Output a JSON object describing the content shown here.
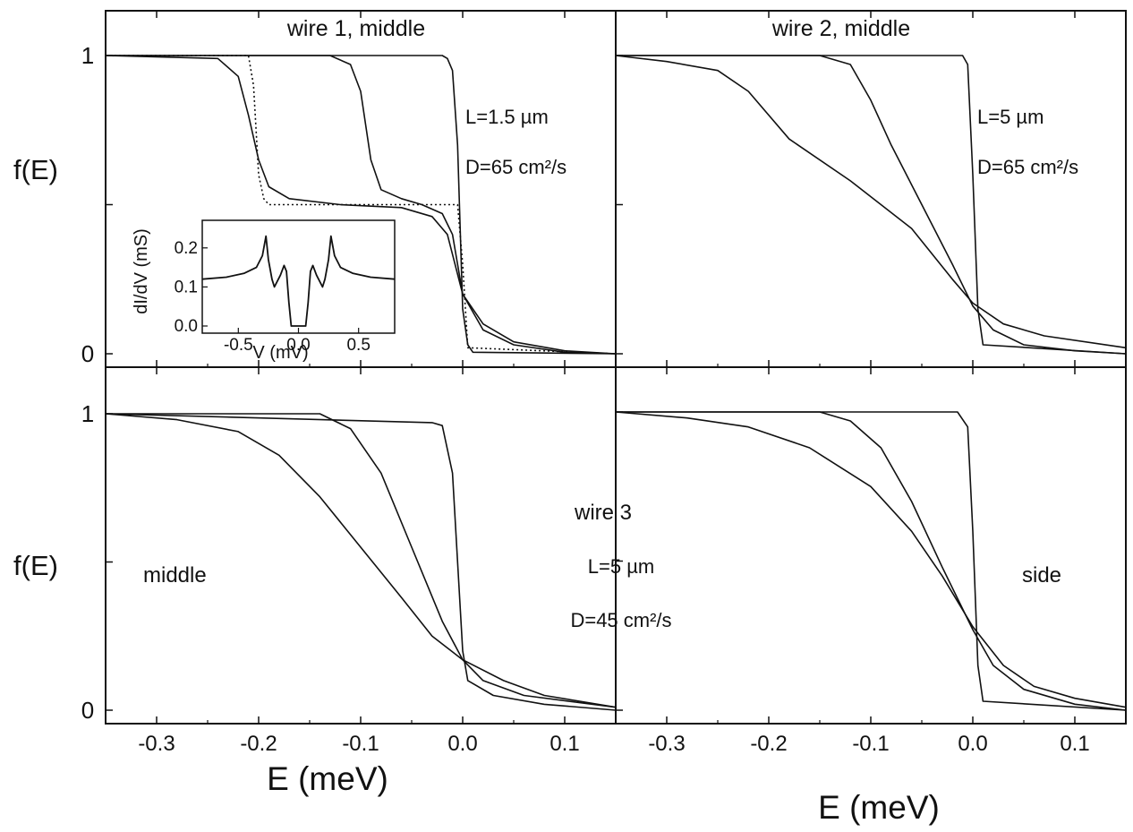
{
  "chart_data": [
    {
      "type": "line",
      "panel": "top-left",
      "annotations": [
        "wire 1, middle",
        "L=1.5 µm",
        "D=65 cm²/s"
      ],
      "ylabel": "f(E)",
      "xlim": [
        -0.35,
        0.15
      ],
      "ylim": [
        0,
        1
      ],
      "yticks": [
        "0",
        "1"
      ],
      "series": [
        {
          "style": "solid",
          "x": [
            -0.35,
            -0.02,
            -0.015,
            -0.01,
            -0.005,
            0,
            0.005,
            0.01,
            0.15
          ],
          "y": [
            1,
            1,
            0.99,
            0.95,
            0.7,
            0.15,
            0.03,
            0.005,
            0
          ]
        },
        {
          "style": "solid",
          "x": [
            -0.35,
            -0.13,
            -0.11,
            -0.1,
            -0.09,
            -0.08,
            -0.06,
            -0.04,
            -0.02,
            -0.01,
            0,
            0.02,
            0.05,
            0.1,
            0.15
          ],
          "y": [
            1,
            1,
            0.97,
            0.88,
            0.65,
            0.55,
            0.52,
            0.5,
            0.47,
            0.4,
            0.2,
            0.08,
            0.03,
            0.005,
            0
          ]
        },
        {
          "style": "solid",
          "x": [
            -0.35,
            -0.24,
            -0.22,
            -0.21,
            -0.2,
            -0.19,
            -0.17,
            -0.12,
            -0.06,
            -0.03,
            -0.015,
            0,
            0.02,
            0.05,
            0.1,
            0.15
          ],
          "y": [
            1,
            0.99,
            0.93,
            0.8,
            0.65,
            0.56,
            0.52,
            0.5,
            0.49,
            0.46,
            0.4,
            0.2,
            0.1,
            0.04,
            0.01,
            0
          ]
        },
        {
          "style": "dotted",
          "x": [
            -0.35,
            -0.21,
            -0.205,
            -0.2,
            -0.195,
            -0.19,
            -0.005,
            0,
            0.005,
            0.15
          ],
          "y": [
            1,
            1,
            0.9,
            0.6,
            0.52,
            0.5,
            0.5,
            0.3,
            0.02,
            0
          ]
        }
      ]
    },
    {
      "type": "line",
      "panel": "inset",
      "xlabel": "V (mV)",
      "ylabel": "dI/dV (mS)",
      "xlim": [
        -0.8,
        0.8
      ],
      "ylim": [
        0,
        0.25
      ],
      "xticks": [
        "-0.5",
        "0.0",
        "0.5"
      ],
      "yticks": [
        "0.0",
        "0.1",
        "0.2"
      ],
      "series": [
        {
          "style": "solid",
          "x": [
            -0.8,
            -0.6,
            -0.45,
            -0.35,
            -0.3,
            -0.27,
            -0.25,
            -0.22,
            -0.2,
            -0.15,
            -0.12,
            -0.1,
            -0.08,
            -0.06,
            0.06,
            0.08,
            0.1,
            0.12,
            0.15,
            0.2,
            0.22,
            0.25,
            0.27,
            0.3,
            0.35,
            0.45,
            0.6,
            0.8
          ],
          "y": [
            0.12,
            0.125,
            0.135,
            0.15,
            0.18,
            0.23,
            0.17,
            0.12,
            0.1,
            0.13,
            0.155,
            0.14,
            0.06,
            0,
            0,
            0.06,
            0.14,
            0.155,
            0.13,
            0.1,
            0.12,
            0.17,
            0.23,
            0.18,
            0.15,
            0.135,
            0.125,
            0.12
          ]
        }
      ]
    },
    {
      "type": "line",
      "panel": "top-right",
      "annotations": [
        "wire 2, middle",
        "L=5 µm",
        "D=65 cm²/s"
      ],
      "xlim": [
        -0.35,
        0.15
      ],
      "ylim": [
        0,
        1
      ],
      "series": [
        {
          "style": "solid",
          "x": [
            -0.35,
            -0.01,
            -0.005,
            0,
            0.005,
            0.01,
            0.15
          ],
          "y": [
            1,
            1,
            0.97,
            0.6,
            0.15,
            0.03,
            0
          ]
        },
        {
          "style": "solid",
          "x": [
            -0.35,
            -0.15,
            -0.12,
            -0.1,
            -0.08,
            -0.05,
            -0.02,
            0,
            0.02,
            0.05,
            0.1,
            0.15
          ],
          "y": [
            1,
            1,
            0.97,
            0.85,
            0.7,
            0.5,
            0.3,
            0.16,
            0.08,
            0.03,
            0.01,
            0
          ]
        },
        {
          "style": "solid",
          "x": [
            -0.35,
            -0.3,
            -0.25,
            -0.22,
            -0.18,
            -0.12,
            -0.06,
            -0.02,
            0,
            0.03,
            0.07,
            0.15
          ],
          "y": [
            1,
            0.98,
            0.95,
            0.88,
            0.72,
            0.58,
            0.42,
            0.25,
            0.17,
            0.1,
            0.06,
            0.02
          ]
        }
      ]
    },
    {
      "type": "line",
      "panel": "bottom-left",
      "annotations": [
        "middle"
      ],
      "ylabel": "f(E)",
      "xlabel": "E (meV)",
      "xlim": [
        -0.35,
        0.15
      ],
      "ylim": [
        0,
        1
      ],
      "xticks": [
        "-0.3",
        "-0.2",
        "-0.1",
        "0.0",
        "0.1"
      ],
      "yticks": [
        "0",
        "1"
      ],
      "series": [
        {
          "style": "solid",
          "x": [
            -0.35,
            -0.03,
            -0.02,
            -0.01,
            0,
            0.005,
            0.03,
            0.08,
            0.15
          ],
          "y": [
            1,
            0.97,
            0.96,
            0.8,
            0.2,
            0.1,
            0.05,
            0.02,
            0
          ]
        },
        {
          "style": "solid",
          "x": [
            -0.35,
            -0.14,
            -0.11,
            -0.08,
            -0.05,
            -0.02,
            0,
            0.02,
            0.06,
            0.15
          ],
          "y": [
            1,
            1,
            0.95,
            0.8,
            0.55,
            0.3,
            0.17,
            0.1,
            0.05,
            0.01
          ]
        },
        {
          "style": "solid",
          "x": [
            -0.35,
            -0.28,
            -0.22,
            -0.18,
            -0.14,
            -0.1,
            -0.06,
            -0.03,
            0,
            0.04,
            0.08,
            0.15
          ],
          "y": [
            1,
            0.98,
            0.94,
            0.86,
            0.72,
            0.55,
            0.38,
            0.25,
            0.17,
            0.1,
            0.05,
            0.01
          ]
        }
      ]
    },
    {
      "type": "line",
      "panel": "bottom-right",
      "annotations": [
        "wire 3",
        "L=5 µm",
        "D=45 cm²/s",
        "side"
      ],
      "xlabel": "E (meV)",
      "xlim": [
        -0.35,
        0.15
      ],
      "ylim": [
        0,
        1
      ],
      "xticks": [
        "-0.3",
        "-0.2",
        "-0.1",
        "0.0",
        "0.1"
      ],
      "series": [
        {
          "style": "solid",
          "x": [
            -0.35,
            -0.015,
            -0.005,
            0,
            0.005,
            0.01,
            0.15
          ],
          "y": [
            1,
            1,
            0.95,
            0.6,
            0.15,
            0.03,
            0
          ]
        },
        {
          "style": "solid",
          "x": [
            -0.35,
            -0.15,
            -0.12,
            -0.09,
            -0.06,
            -0.03,
            0,
            0.02,
            0.05,
            0.1,
            0.15
          ],
          "y": [
            1,
            1,
            0.97,
            0.88,
            0.7,
            0.48,
            0.27,
            0.15,
            0.07,
            0.02,
            0
          ]
        },
        {
          "style": "solid",
          "x": [
            -0.35,
            -0.28,
            -0.22,
            -0.16,
            -0.1,
            -0.06,
            -0.03,
            0,
            0.03,
            0.06,
            0.1,
            0.15
          ],
          "y": [
            1,
            0.98,
            0.95,
            0.88,
            0.75,
            0.6,
            0.45,
            0.28,
            0.15,
            0.08,
            0.04,
            0.01
          ]
        }
      ]
    }
  ]
}
